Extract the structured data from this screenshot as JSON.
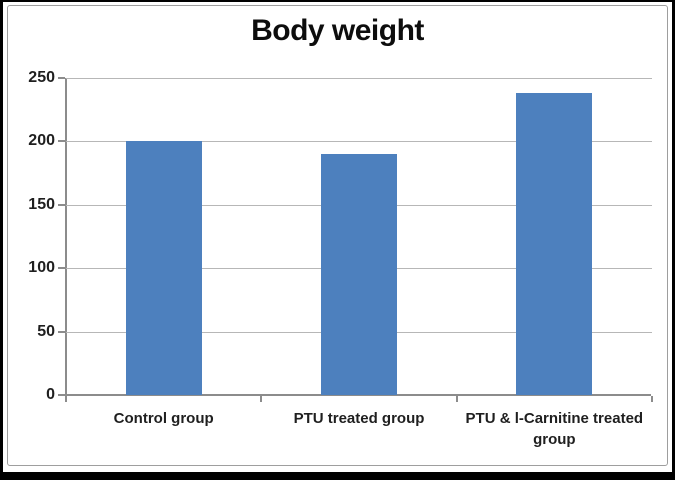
{
  "chart_data": {
    "type": "bar",
    "title": "Body weight",
    "categories": [
      "Control group",
      "PTU treated group",
      "PTU & l-Carnitine treated group"
    ],
    "values": [
      200,
      190,
      238
    ],
    "xlabel": "",
    "ylabel": "",
    "ylim": [
      0,
      250
    ],
    "yticks": [
      0,
      50,
      100,
      150,
      200,
      250
    ],
    "grid": true,
    "legend_position": "none",
    "colors": {
      "bar_fill": "#4d80be",
      "gridline": "#b7b7b7",
      "axis": "#8c8c8c",
      "text": "#1f1f1f",
      "title_text": "#0d0d0d",
      "frame_border": "#9e9e9e",
      "outer_border": "#000000",
      "background": "#ffffff"
    }
  }
}
